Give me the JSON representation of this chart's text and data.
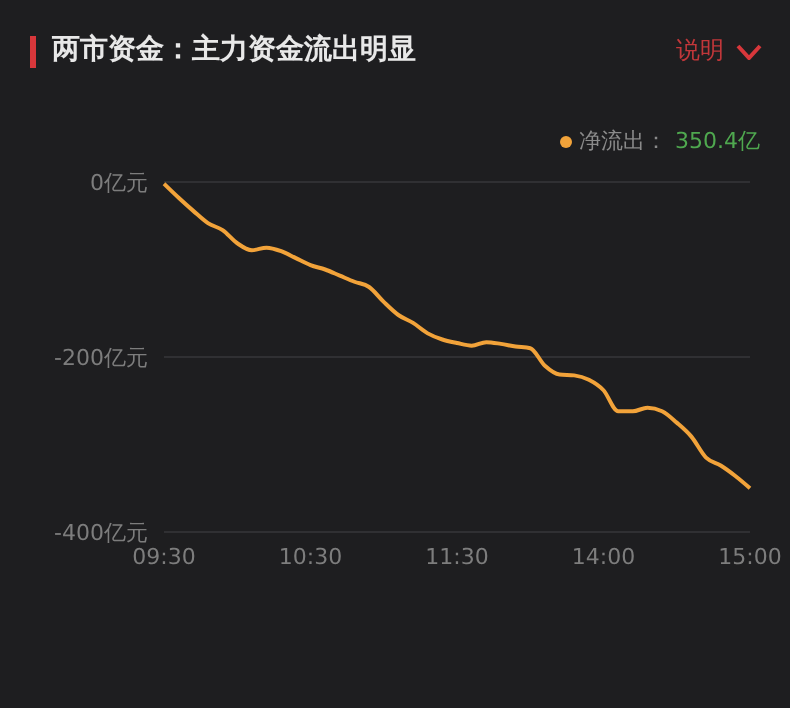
{
  "chart_data": {
    "type": "line",
    "title": "两市资金：主力资金流出明显",
    "annotations": [
      "说明",
      "350.4亿"
    ],
    "categories": [
      "09:30",
      null,
      null,
      null,
      null,
      null,
      null,
      null,
      null,
      null,
      "10:30",
      null,
      null,
      null,
      null,
      null,
      null,
      null,
      null,
      null,
      "11:30",
      null,
      null,
      null,
      null,
      null,
      null,
      null,
      null,
      null,
      "14:00",
      null,
      null,
      null,
      null,
      null,
      null,
      null,
      null,
      null,
      "15:00"
    ],
    "series": [
      {
        "name": "净流出：",
        "color": "#f2a33a",
        "values": [
          -2,
          -18,
          -33,
          -47,
          -55,
          -70,
          -78,
          -75,
          -79,
          -87,
          -95,
          -100,
          -107,
          -114,
          -120,
          -137,
          -152,
          -161,
          -173,
          -180,
          -184,
          -187,
          -183,
          -185,
          -188,
          -190,
          -210,
          -220,
          -221,
          -226,
          -238,
          -262,
          -262,
          -258,
          -262,
          -275,
          -291,
          -315,
          -324,
          -336,
          -350
        ]
      }
    ],
    "ylim": [
      -400,
      0
    ],
    "yticks": [
      {
        "value": 0,
        "label": "0亿元"
      },
      {
        "value": -200,
        "label": "-200亿元"
      },
      {
        "value": -400,
        "label": "-400亿元"
      }
    ],
    "grid": "y",
    "legend": "top right",
    "marker": "none",
    "line_style": "solid"
  }
}
